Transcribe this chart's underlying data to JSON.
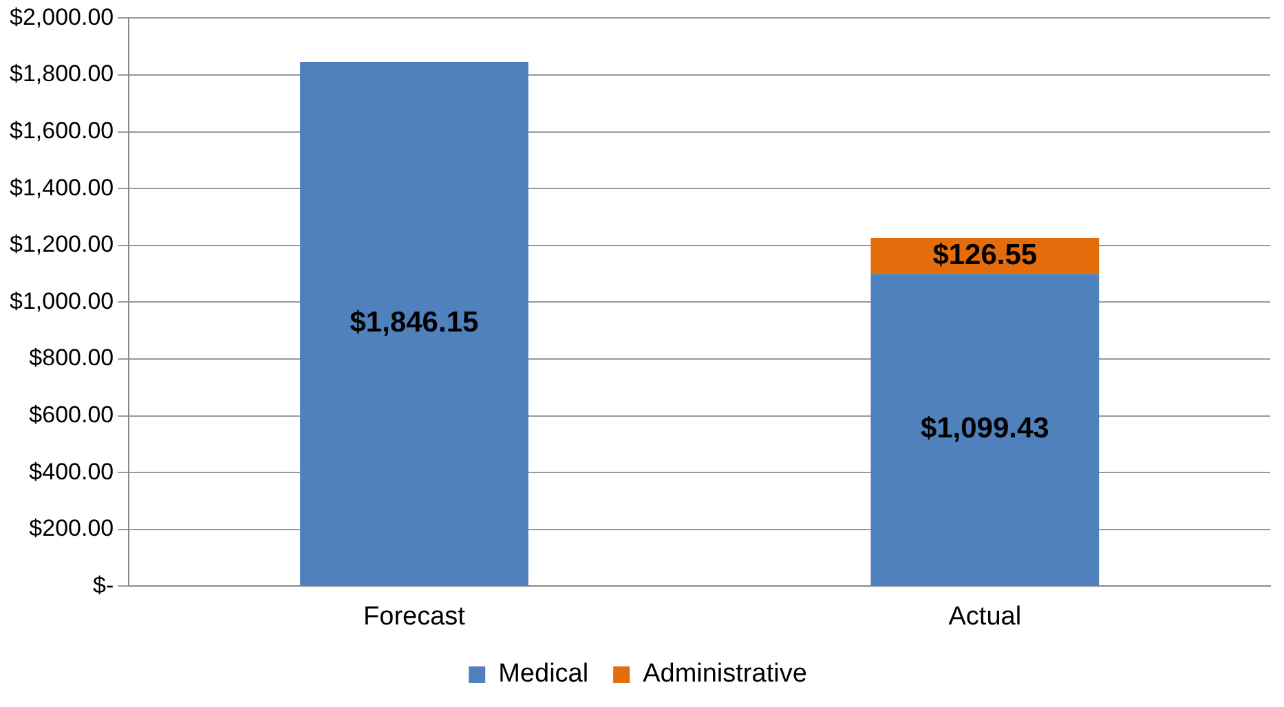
{
  "chart_data": {
    "type": "bar",
    "stacked": true,
    "categories": [
      "Forecast",
      "Actual"
    ],
    "series": [
      {
        "name": "Medical",
        "color": "#4f81bd",
        "values": [
          1846.15,
          1099.43
        ],
        "value_labels": [
          "$1,846.15",
          "$1,099.43"
        ]
      },
      {
        "name": "Administrative",
        "color": "#e46c0a",
        "values": [
          null,
          126.55
        ],
        "value_labels": [
          null,
          "$126.55"
        ]
      }
    ],
    "ylim": [
      0,
      2000
    ],
    "yticks": [
      {
        "value": 0,
        "label": "$-"
      },
      {
        "value": 200,
        "label": "$200.00"
      },
      {
        "value": 400,
        "label": "$400.00"
      },
      {
        "value": 600,
        "label": "$600.00"
      },
      {
        "value": 800,
        "label": "$800.00"
      },
      {
        "value": 1000,
        "label": "$1,000.00"
      },
      {
        "value": 1200,
        "label": "$1,200.00"
      },
      {
        "value": 1400,
        "label": "$1,400.00"
      },
      {
        "value": 1600,
        "label": "$1,600.00"
      },
      {
        "value": 1800,
        "label": "$1,800.00"
      },
      {
        "value": 2000,
        "label": "$2,000.00"
      }
    ],
    "grid": "y",
    "legend": "bottom"
  }
}
